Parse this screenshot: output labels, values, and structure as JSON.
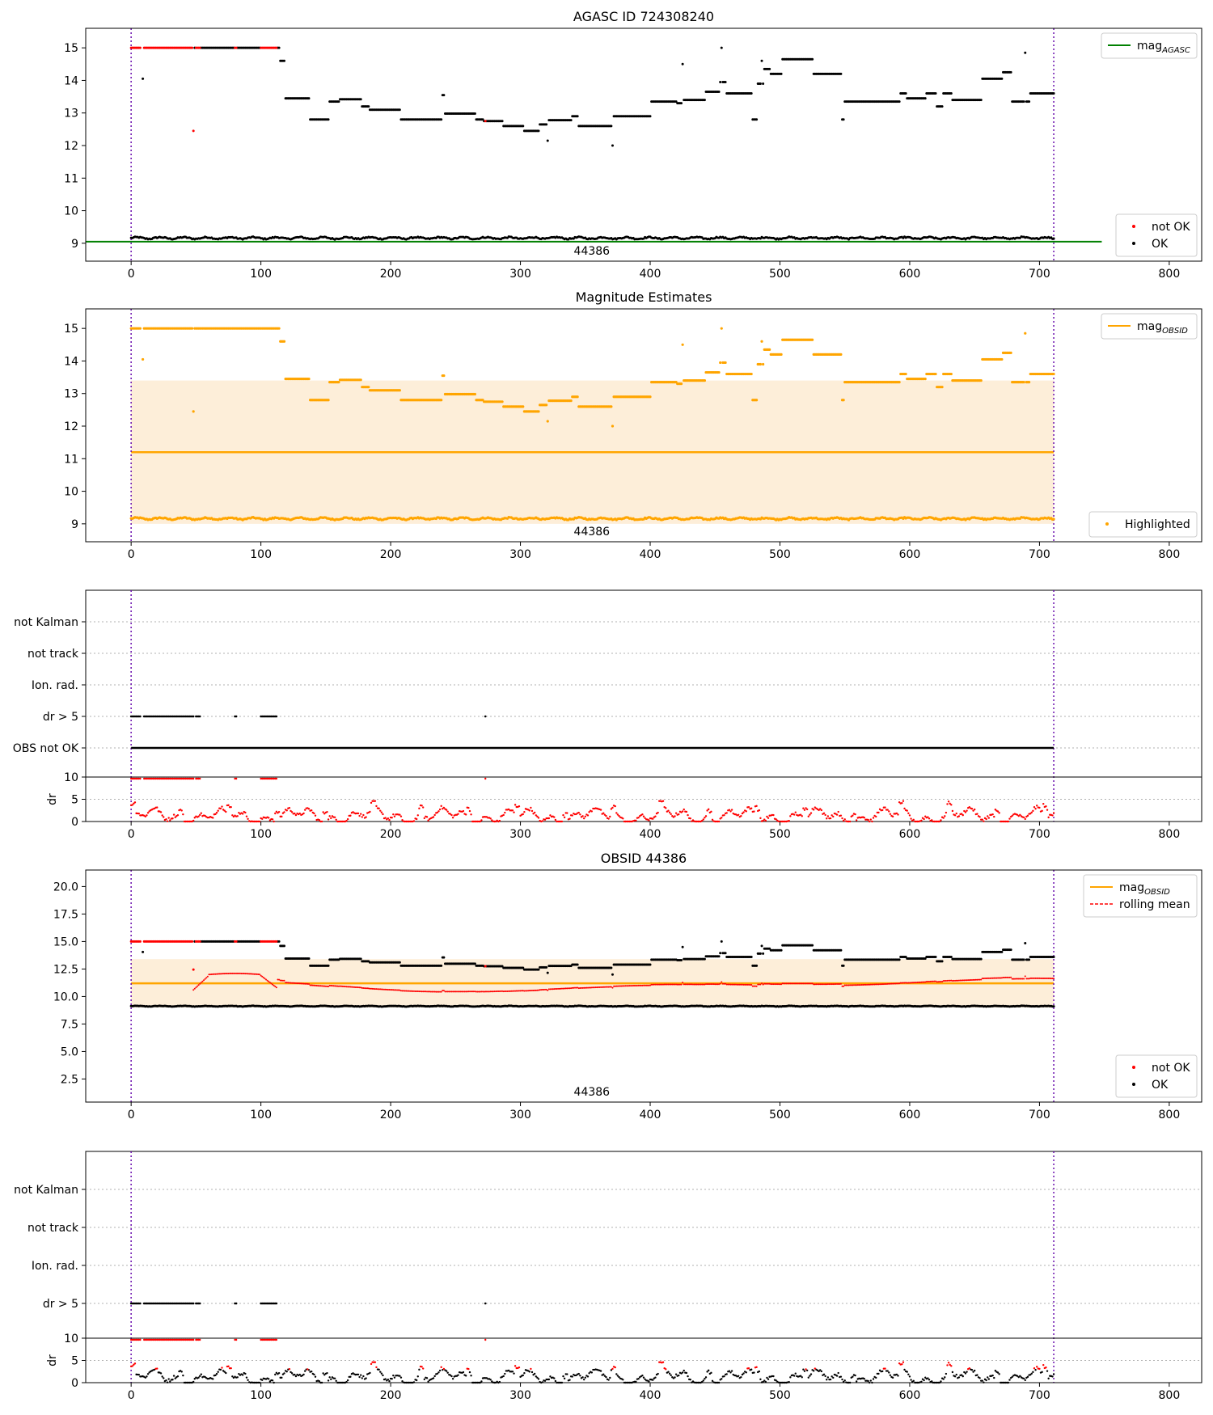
{
  "colors": {
    "ok": "#000000",
    "not_ok": "#ff0000",
    "obsid": "#ffa500",
    "band": "#fdeed9",
    "agasc_line": "#008000",
    "vline": "#6a0dad",
    "grid": "#b0b0b0"
  },
  "chart_data": [
    {
      "id": "agasc",
      "type": "scatter",
      "title": "AGASC ID 724308240",
      "xlim": [
        -35,
        825
      ],
      "ylim": [
        8.45,
        15.6
      ],
      "xticks": [
        0,
        100,
        200,
        300,
        400,
        500,
        600,
        700,
        800
      ],
      "yticks": [
        9,
        10,
        11,
        12,
        13,
        14,
        15
      ],
      "n_points": 712,
      "obsid_label": "44386",
      "agasc_mag": 9.05,
      "obs_boundaries": [
        0,
        711
      ],
      "legends": [
        {
          "position": "top-right",
          "entries": [
            {
              "label": "mag",
              "sub": "AGASC",
              "style": "line",
              "color": "#008000"
            }
          ]
        },
        {
          "position": "bottom-right",
          "entries": [
            {
              "label": "not OK",
              "style": "dot",
              "color": "#ff0000"
            },
            {
              "label": "OK",
              "style": "dot",
              "color": "#000000"
            }
          ]
        }
      ]
    },
    {
      "id": "estimates",
      "type": "scatter",
      "title": "Magnitude Estimates",
      "xlim": [
        -35,
        825
      ],
      "ylim": [
        8.45,
        15.6
      ],
      "xticks": [
        0,
        100,
        200,
        300,
        400,
        500,
        600,
        700,
        800
      ],
      "yticks": [
        9,
        10,
        11,
        12,
        13,
        14,
        15
      ],
      "obsid_label": "44386",
      "mag_obsid": 11.2,
      "band": [
        9.0,
        13.4
      ],
      "legends": [
        {
          "position": "top-right",
          "entries": [
            {
              "label": "mag",
              "sub": "OBSID",
              "style": "line",
              "color": "#ffa500"
            }
          ]
        },
        {
          "position": "bottom-right",
          "entries": [
            {
              "label": "Highlighted",
              "style": "dot",
              "color": "#ffa500"
            }
          ]
        }
      ]
    },
    {
      "id": "flags1",
      "type": "scatter",
      "title": "",
      "xlim": [
        -35,
        825
      ],
      "xticks": [
        0,
        100,
        200,
        300,
        400,
        500,
        600,
        700,
        800
      ],
      "categories": [
        "not Kalman",
        "not track",
        "Ion. rad.",
        "dr > 5",
        "OBS not OK"
      ],
      "dr_axis": {
        "ylabel": "dr",
        "ylim": [
          0,
          10
        ],
        "yticks": [
          0,
          5,
          10
        ]
      }
    },
    {
      "id": "obsid",
      "type": "scatter",
      "title": "OBSID 44386",
      "xlim": [
        -35,
        825
      ],
      "ylim": [
        0.4,
        21.5
      ],
      "xticks": [
        0,
        100,
        200,
        300,
        400,
        500,
        600,
        700,
        800
      ],
      "yticks": [
        2.5,
        5.0,
        7.5,
        10.0,
        12.5,
        15.0,
        17.5,
        20.0
      ],
      "obsid_label": "44386",
      "mag_obsid": 11.2,
      "band": [
        9.0,
        13.4
      ],
      "legends": [
        {
          "position": "top-right",
          "entries": [
            {
              "label": "mag",
              "sub": "OBSID",
              "style": "line",
              "color": "#ffa500"
            },
            {
              "label": "rolling mean",
              "style": "dashed",
              "color": "#ff0000"
            }
          ]
        },
        {
          "position": "bottom-right",
          "entries": [
            {
              "label": "not OK",
              "style": "dot",
              "color": "#ff0000"
            },
            {
              "label": "OK",
              "style": "dot",
              "color": "#000000"
            }
          ]
        }
      ]
    },
    {
      "id": "flags2",
      "type": "scatter",
      "title": "",
      "xlim": [
        -35,
        825
      ],
      "xticks": [
        0,
        100,
        200,
        300,
        400,
        500,
        600,
        700,
        800
      ],
      "categories": [
        "not Kalman",
        "not track",
        "Ion. rad.",
        "dr > 5"
      ],
      "dr_axis": {
        "ylabel": "dr",
        "ylim": [
          0,
          10
        ],
        "yticks": [
          0,
          5,
          10
        ]
      }
    }
  ]
}
